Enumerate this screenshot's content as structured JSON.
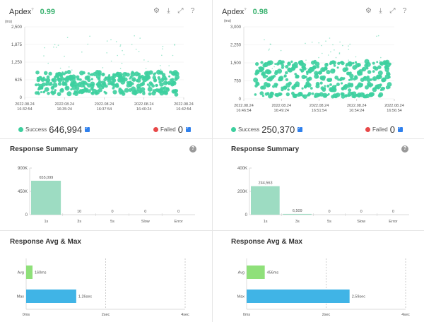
{
  "panels": [
    {
      "apdex": {
        "label": "Apdex",
        "value": "0.99"
      },
      "ms_label": "(ms)",
      "scatter": {
        "y_ticks": [
          "2,500",
          "1,875",
          "1,250",
          "625",
          "0"
        ],
        "x_ticks": [
          [
            "2022.08.24",
            "16:32:54"
          ],
          [
            "2022.08.24",
            "16:35:24"
          ],
          [
            "2022.08.24",
            "16:37:54"
          ],
          [
            "2022.08.24",
            "16:40:24"
          ],
          [
            "2022.08.24",
            "16:42:54"
          ]
        ]
      },
      "legend": {
        "success_label": "Success",
        "success_value": "646,994",
        "success_color": "#3dcf9e",
        "failed_label": "Failed",
        "failed_value": "0",
        "failed_color": "#e84848"
      },
      "response_summary": {
        "title": "Response Summary",
        "chart_data": {
          "type": "bar",
          "categories": [
            "1s",
            "3s",
            "5s",
            "Slow",
            "Error"
          ],
          "values": [
            655099,
            10,
            0,
            0,
            0
          ],
          "value_labels": [
            "655,099",
            "10",
            "0",
            "0",
            "0"
          ],
          "y_ticks": [
            "900K",
            "450K",
            "0"
          ],
          "ylim": [
            0,
            900000
          ]
        }
      },
      "response_avg_max": {
        "title": "Response Avg & Max",
        "chart_data": {
          "type": "bar",
          "orientation": "horizontal",
          "categories": [
            "Avg",
            "Max"
          ],
          "values": [
            160,
            1260
          ],
          "value_labels": [
            "160ms",
            "1.26sec"
          ],
          "x_ticks": [
            "0ms",
            "2sec",
            "4sec"
          ],
          "xlim": [
            0,
            4000
          ]
        }
      }
    },
    {
      "apdex": {
        "label": "Apdex",
        "value": "0.98"
      },
      "ms_label": "(ms)",
      "scatter": {
        "y_ticks": [
          "3,000",
          "2,250",
          "1,500",
          "750",
          "0"
        ],
        "x_ticks": [
          [
            "2022.08.24",
            "16:46:54"
          ],
          [
            "2022.08.24",
            "16:49:24"
          ],
          [
            "2022.08.24",
            "16:51:54"
          ],
          [
            "2022.08.24",
            "16:54:24"
          ],
          [
            "2022.08.24",
            "16:56:54"
          ]
        ]
      },
      "legend": {
        "success_label": "Success",
        "success_value": "250,370",
        "success_color": "#3dcf9e",
        "failed_label": "Failed",
        "failed_value": "0",
        "failed_color": "#e84848"
      },
      "response_summary": {
        "title": "Response Summary",
        "chart_data": {
          "type": "bar",
          "categories": [
            "1s",
            "3s",
            "5s",
            "Slow",
            "Error"
          ],
          "values": [
            244563,
            6509,
            0,
            0,
            0
          ],
          "value_labels": [
            "244,563",
            "6,509",
            "0",
            "0",
            "0"
          ],
          "y_ticks": [
            "400K",
            "200K",
            "0"
          ],
          "ylim": [
            0,
            400000
          ]
        }
      },
      "response_avg_max": {
        "title": "Response Avg & Max",
        "chart_data": {
          "type": "bar",
          "orientation": "horizontal",
          "categories": [
            "Avg",
            "Max"
          ],
          "values": [
            456,
            2590
          ],
          "value_labels": [
            "456ms",
            "2.59sec"
          ],
          "x_ticks": [
            "0ms",
            "2sec",
            "4sec"
          ],
          "xlim": [
            0,
            4000
          ]
        }
      }
    }
  ],
  "colors": {
    "scatter": "#3dcf9e",
    "summary_bar": "#9ddcc2",
    "avg_bar": "#8fe07a",
    "max_bar": "#40b4e6"
  }
}
